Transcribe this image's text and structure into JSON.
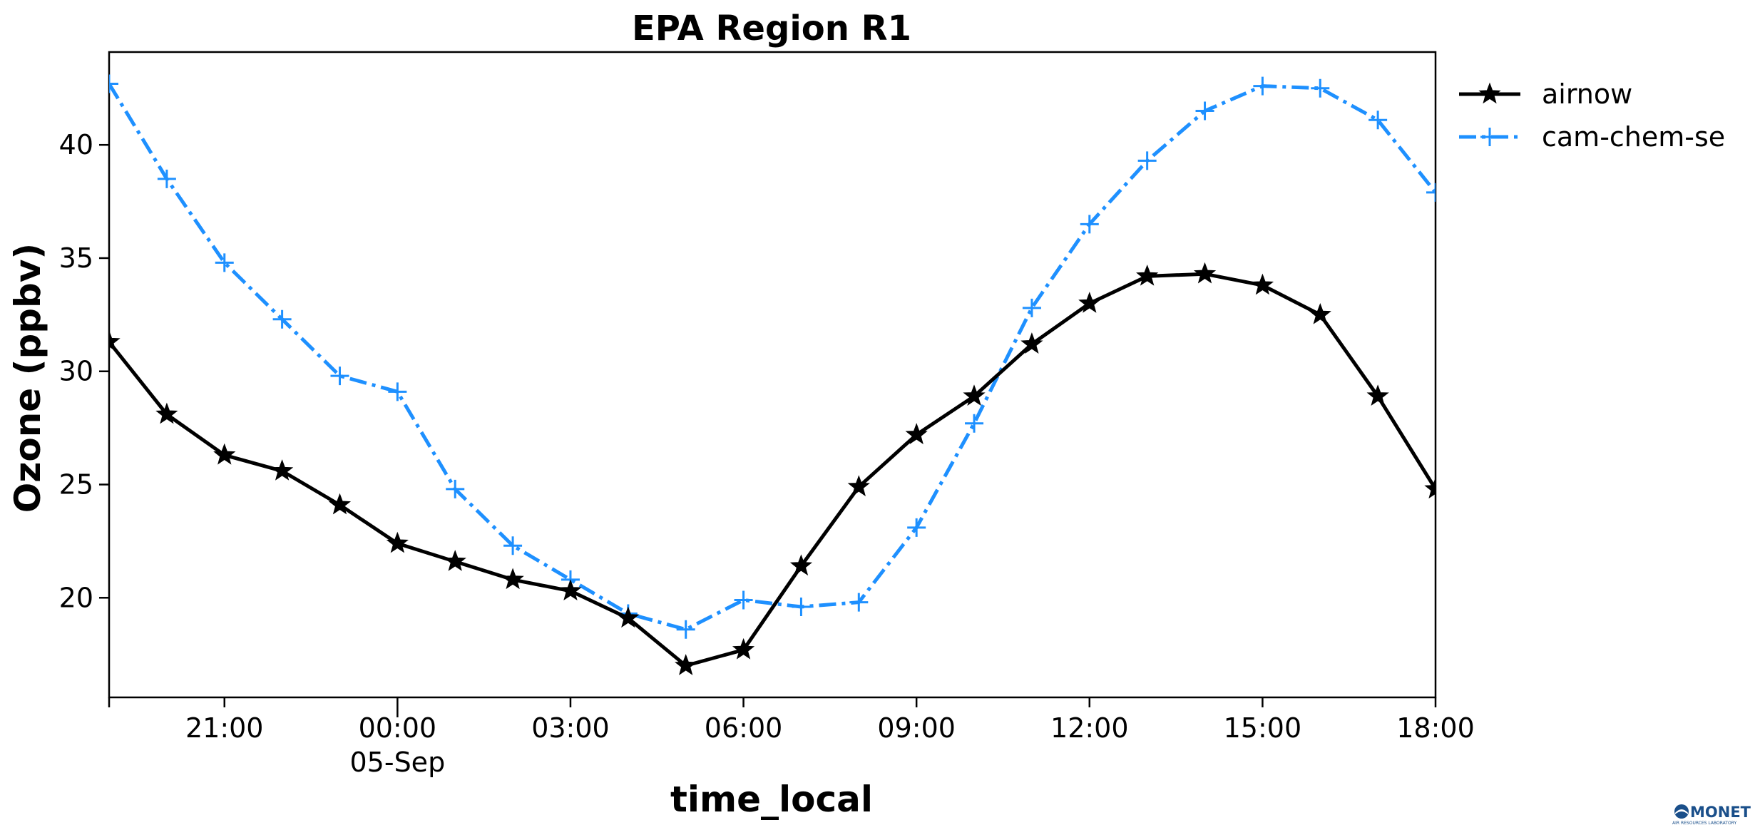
{
  "chart_data": {
    "type": "line",
    "title": "EPA Region R1",
    "xlabel": "time_local",
    "ylabel": "Ozone (ppbv)",
    "x": [
      "2019-09-04T19:00",
      "2019-09-04T20:00",
      "2019-09-04T21:00",
      "2019-09-04T22:00",
      "2019-09-04T23:00",
      "2019-09-05T00:00",
      "2019-09-05T01:00",
      "2019-09-05T02:00",
      "2019-09-05T03:00",
      "2019-09-05T04:00",
      "2019-09-05T05:00",
      "2019-09-05T06:00",
      "2019-09-05T07:00",
      "2019-09-05T08:00",
      "2019-09-05T09:00",
      "2019-09-05T10:00",
      "2019-09-05T11:00",
      "2019-09-05T12:00",
      "2019-09-05T13:00",
      "2019-09-05T14:00",
      "2019-09-05T15:00",
      "2019-09-05T16:00",
      "2019-09-05T17:00",
      "2019-09-05T18:00"
    ],
    "xticks": [
      "21:00",
      "00:00",
      "03:00",
      "06:00",
      "09:00",
      "12:00",
      "15:00",
      "18:00"
    ],
    "xtick_sublabels": [
      "",
      "05-Sep",
      "",
      "",
      "",
      "",
      "",
      ""
    ],
    "yticks": [
      "20",
      "25",
      "30",
      "35",
      "40"
    ],
    "ylim": [
      15.6,
      44.1
    ],
    "series": [
      {
        "name": "airnow",
        "color": "#000000",
        "marker": "star",
        "linestyle": "solid",
        "values": [
          31.3,
          28.1,
          26.3,
          25.6,
          24.1,
          22.4,
          21.6,
          20.8,
          20.3,
          19.1,
          17.0,
          17.7,
          21.4,
          24.9,
          27.2,
          28.9,
          31.2,
          33.0,
          34.2,
          34.3,
          33.8,
          32.5,
          28.9,
          24.8
        ]
      },
      {
        "name": "cam-chem-se",
        "color": "#1e90ff",
        "marker": "plus",
        "linestyle": "dashdot",
        "values": [
          42.7,
          38.5,
          34.8,
          32.3,
          29.8,
          29.1,
          24.8,
          22.3,
          20.8,
          19.3,
          18.6,
          19.9,
          19.6,
          19.8,
          23.1,
          27.7,
          32.8,
          36.5,
          39.3,
          41.5,
          42.6,
          42.5,
          41.1,
          37.9
        ]
      }
    ],
    "grid": false,
    "legend_position": "outside-top-right"
  },
  "logo": {
    "text": "MONET",
    "subtext": "AIR RESOURCES LABORATORY"
  }
}
